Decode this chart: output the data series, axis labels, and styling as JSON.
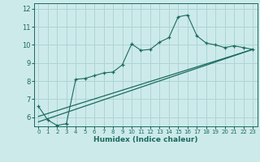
{
  "xlabel": "Humidex (Indice chaleur)",
  "bg_color": "#cdeaea",
  "line_color": "#1a6b5e",
  "grid_color": "#aed4d4",
  "xlim": [
    -0.5,
    23.5
  ],
  "ylim": [
    5.5,
    12.3
  ],
  "yticks": [
    6,
    7,
    8,
    9,
    10,
    11,
    12
  ],
  "xticks": [
    0,
    1,
    2,
    3,
    4,
    5,
    6,
    7,
    8,
    9,
    10,
    11,
    12,
    13,
    14,
    15,
    16,
    17,
    18,
    19,
    20,
    21,
    22,
    23
  ],
  "line1_x": [
    0,
    1,
    2,
    3,
    4,
    5,
    6,
    7,
    8,
    9,
    10,
    11,
    12,
    13,
    14,
    15,
    16,
    17,
    18,
    19,
    20,
    21,
    22,
    23
  ],
  "line1_y": [
    6.6,
    5.85,
    5.55,
    5.65,
    8.1,
    8.15,
    8.3,
    8.45,
    8.5,
    8.9,
    10.05,
    9.7,
    9.75,
    10.15,
    10.4,
    11.55,
    11.65,
    10.5,
    10.1,
    10.0,
    9.85,
    9.95,
    9.85,
    9.75
  ],
  "line2_x": [
    0,
    23
  ],
  "line2_y": [
    6.05,
    9.75
  ],
  "line3_x": [
    0,
    23
  ],
  "line3_y": [
    5.75,
    9.75
  ]
}
